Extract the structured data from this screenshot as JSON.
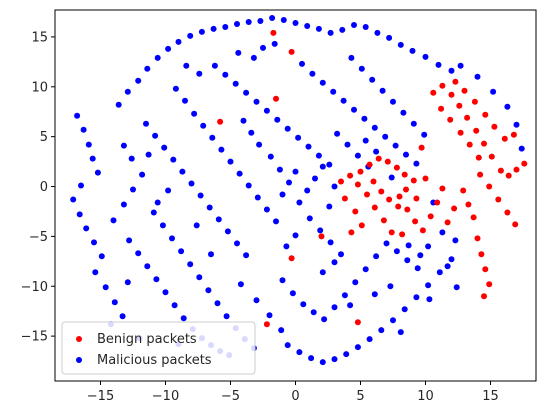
{
  "chart_data": {
    "type": "scatter",
    "title": "",
    "xlabel": "",
    "ylabel": "",
    "xlim": [
      -18.5,
      18.5
    ],
    "ylim": [
      -19.5,
      17.7
    ],
    "xticks": [
      -15,
      -10,
      -5,
      0,
      5,
      10,
      15
    ],
    "yticks": [
      -15,
      -10,
      -5,
      0,
      5,
      10,
      15
    ],
    "xtick_labels": [
      "−15",
      "−10",
      "−5",
      "0",
      "5",
      "10",
      "15"
    ],
    "ytick_labels": [
      "−15",
      "−10",
      "−5",
      "0",
      "5",
      "10",
      "15"
    ],
    "grid": false,
    "legend_position": "lower-left",
    "series": [
      {
        "name": "Benign packets",
        "color": "#ff0000",
        "points": [
          [
            3.5,
            0.5
          ],
          [
            4.2,
            1.1
          ],
          [
            4.8,
            0.2
          ],
          [
            5.5,
            -0.8
          ],
          [
            6.1,
            -2.1
          ],
          [
            6.8,
            -3.4
          ],
          [
            7.4,
            -4.6
          ],
          [
            5.0,
            1.5
          ],
          [
            5.7,
            2.2
          ],
          [
            6.4,
            2.8
          ],
          [
            7.1,
            2.5
          ],
          [
            7.8,
            1.9
          ],
          [
            8.4,
            1.2
          ],
          [
            9.1,
            0.6
          ],
          [
            8.0,
            -1.0
          ],
          [
            8.6,
            -2.3
          ],
          [
            9.2,
            -3.5
          ],
          [
            9.8,
            -4.4
          ],
          [
            10.4,
            -3.0
          ],
          [
            10.9,
            -1.6
          ],
          [
            11.3,
            -0.2
          ],
          [
            6.0,
            0.5
          ],
          [
            6.6,
            -0.5
          ],
          [
            7.2,
            -1.3
          ],
          [
            7.9,
            -2.0
          ],
          [
            8.5,
            -0.3
          ],
          [
            9.3,
            -1.2
          ],
          [
            10.0,
            0.8
          ],
          [
            10.6,
            9.4
          ],
          [
            11.3,
            10.1
          ],
          [
            12.0,
            9.2
          ],
          [
            12.6,
            8.1
          ],
          [
            13.2,
            6.9
          ],
          [
            13.9,
            5.6
          ],
          [
            14.5,
            4.3
          ],
          [
            15.1,
            3.0
          ],
          [
            15.8,
            1.6
          ],
          [
            16.4,
            1.1
          ],
          [
            17.0,
            1.7
          ],
          [
            17.6,
            2.3
          ],
          [
            11.2,
            7.8
          ],
          [
            11.9,
            6.7
          ],
          [
            12.7,
            5.4
          ],
          [
            13.4,
            4.2
          ],
          [
            14.1,
            2.9
          ],
          [
            12.3,
            10.5
          ],
          [
            13.0,
            9.6
          ],
          [
            13.8,
            8.5
          ],
          [
            14.6,
            7.2
          ],
          [
            15.3,
            6.0
          ],
          [
            16.1,
            4.8
          ],
          [
            16.8,
            5.2
          ],
          [
            14.2,
            1.2
          ],
          [
            14.9,
            0.0
          ],
          [
            15.6,
            -1.3
          ],
          [
            16.3,
            -2.6
          ],
          [
            16.9,
            -3.8
          ],
          [
            14.0,
            -5.2
          ],
          [
            14.3,
            -6.8
          ],
          [
            14.6,
            -8.3
          ],
          [
            14.9,
            -9.8
          ],
          [
            14.5,
            -11.0
          ],
          [
            12.9,
            -0.4
          ],
          [
            13.3,
            -1.8
          ],
          [
            13.7,
            -3.1
          ],
          [
            12.2,
            -2.2
          ],
          [
            11.7,
            -3.6
          ],
          [
            4.3,
            -4.6
          ],
          [
            5.1,
            -3.9
          ],
          [
            -0.3,
            13.5
          ],
          [
            -1.5,
            8.8
          ],
          [
            -5.8,
            6.5
          ],
          [
            -0.3,
            -7.2
          ],
          [
            -2.2,
            -13.8
          ],
          [
            4.8,
            -13.6
          ],
          [
            2.0,
            -5.0
          ],
          [
            -1.7,
            15.4
          ],
          [
            9.7,
            3.9
          ],
          [
            8.2,
            -4.8
          ],
          [
            3.8,
            -1.2
          ],
          [
            4.6,
            -2.5
          ]
        ]
      },
      {
        "name": "Malicious packets",
        "color": "#0000ff",
        "points": [
          [
            -16.8,
            7.1
          ],
          [
            -16.3,
            5.7
          ],
          [
            -15.9,
            4.2
          ],
          [
            -15.6,
            2.8
          ],
          [
            -15.2,
            1.4
          ],
          [
            -16.5,
            0.1
          ],
          [
            -17.1,
            -1.3
          ],
          [
            -16.6,
            -2.8
          ],
          [
            -16.1,
            -4.2
          ],
          [
            -15.5,
            -5.6
          ],
          [
            -14.9,
            -7.0
          ],
          [
            -15.4,
            -8.6
          ],
          [
            -14.6,
            -10.1
          ],
          [
            -13.9,
            -11.6
          ],
          [
            -13.3,
            -13.0
          ],
          [
            -14.0,
            -3.4
          ],
          [
            -13.2,
            -1.8
          ],
          [
            -12.5,
            -0.3
          ],
          [
            -11.8,
            1.2
          ],
          [
            -13.6,
            8.2
          ],
          [
            -12.9,
            9.5
          ],
          [
            -12.1,
            10.6
          ],
          [
            -11.4,
            11.8
          ],
          [
            -10.6,
            12.9
          ],
          [
            -9.8,
            13.8
          ],
          [
            -9.0,
            14.5
          ],
          [
            -8.1,
            15.1
          ],
          [
            -7.2,
            15.5
          ],
          [
            -6.3,
            15.8
          ],
          [
            -5.4,
            16.0
          ],
          [
            -4.5,
            16.3
          ],
          [
            -3.6,
            16.5
          ],
          [
            -2.7,
            16.6
          ],
          [
            -1.8,
            16.9
          ],
          [
            -0.9,
            16.7
          ],
          [
            0.0,
            16.4
          ],
          [
            0.9,
            16.1
          ],
          [
            1.8,
            15.8
          ],
          [
            2.7,
            15.4
          ],
          [
            3.6,
            15.7
          ],
          [
            4.5,
            16.2
          ],
          [
            5.4,
            16.0
          ],
          [
            6.3,
            15.4
          ],
          [
            7.2,
            14.9
          ],
          [
            8.1,
            14.2
          ],
          [
            9.0,
            13.6
          ],
          [
            10.0,
            13.0
          ],
          [
            11.0,
            12.2
          ],
          [
            12.0,
            11.6
          ],
          [
            -11.5,
            6.3
          ],
          [
            -10.8,
            5.1
          ],
          [
            -10.1,
            3.9
          ],
          [
            -9.4,
            2.7
          ],
          [
            -8.7,
            1.5
          ],
          [
            -8.0,
            0.3
          ],
          [
            -7.3,
            -0.9
          ],
          [
            -6.6,
            -2.1
          ],
          [
            -5.9,
            -3.3
          ],
          [
            -5.2,
            -4.5
          ],
          [
            -4.5,
            -5.7
          ],
          [
            -3.8,
            -6.9
          ],
          [
            -9.2,
            9.8
          ],
          [
            -8.5,
            8.6
          ],
          [
            -7.8,
            7.3
          ],
          [
            -7.1,
            6.1
          ],
          [
            -6.4,
            4.9
          ],
          [
            -5.7,
            3.7
          ],
          [
            -5.0,
            2.5
          ],
          [
            -4.3,
            1.3
          ],
          [
            -3.6,
            0.1
          ],
          [
            -2.9,
            -1.1
          ],
          [
            -2.2,
            -2.3
          ],
          [
            -1.5,
            -3.5
          ],
          [
            -6.2,
            12.1
          ],
          [
            -5.4,
            11.2
          ],
          [
            -4.6,
            10.3
          ],
          [
            -3.8,
            9.4
          ],
          [
            -3.0,
            8.5
          ],
          [
            -2.2,
            7.6
          ],
          [
            -1.4,
            6.7
          ],
          [
            -0.6,
            5.8
          ],
          [
            0.2,
            4.9
          ],
          [
            1.0,
            4.0
          ],
          [
            1.8,
            3.1
          ],
          [
            2.6,
            2.2
          ],
          [
            0.5,
            12.3
          ],
          [
            1.3,
            11.3
          ],
          [
            2.1,
            10.4
          ],
          [
            2.9,
            9.5
          ],
          [
            3.7,
            8.6
          ],
          [
            4.5,
            7.7
          ],
          [
            5.3,
            6.8
          ],
          [
            6.1,
            5.9
          ],
          [
            6.9,
            5.0
          ],
          [
            7.7,
            4.1
          ],
          [
            8.5,
            3.2
          ],
          [
            9.3,
            2.3
          ],
          [
            -12.8,
            -5.4
          ],
          [
            -12.1,
            -6.7
          ],
          [
            -11.4,
            -8.0
          ],
          [
            -10.7,
            -9.3
          ],
          [
            -10.0,
            -10.6
          ],
          [
            -9.3,
            -11.9
          ],
          [
            -8.6,
            -13.2
          ],
          [
            -7.9,
            -14.3
          ],
          [
            -7.2,
            -15.2
          ],
          [
            -6.5,
            -15.9
          ],
          [
            -5.8,
            -16.5
          ],
          [
            -5.1,
            -16.9
          ],
          [
            -10.9,
            -2.6
          ],
          [
            -10.2,
            -3.9
          ],
          [
            -9.5,
            -5.2
          ],
          [
            -8.8,
            -6.5
          ],
          [
            -8.1,
            -7.8
          ],
          [
            -7.4,
            -9.1
          ],
          [
            -6.7,
            -10.4
          ],
          [
            -6.0,
            -11.7
          ],
          [
            -5.3,
            -13.0
          ],
          [
            -4.6,
            -14.2
          ],
          [
            -3.9,
            -15.3
          ],
          [
            -3.2,
            -16.2
          ],
          [
            -0.6,
            -15.9
          ],
          [
            0.3,
            -16.6
          ],
          [
            1.2,
            -17.2
          ],
          [
            2.1,
            -17.6
          ],
          [
            3.0,
            -17.3
          ],
          [
            3.9,
            -16.8
          ],
          [
            4.8,
            -16.1
          ],
          [
            5.7,
            -15.3
          ],
          [
            6.6,
            -14.4
          ],
          [
            7.5,
            -13.4
          ],
          [
            8.4,
            -12.3
          ],
          [
            9.3,
            -11.1
          ],
          [
            10.2,
            -9.9
          ],
          [
            11.1,
            -8.6
          ],
          [
            12.0,
            -7.3
          ],
          [
            -1.0,
            -9.4
          ],
          [
            -0.2,
            -10.7
          ],
          [
            0.6,
            -11.8
          ],
          [
            1.4,
            -12.6
          ],
          [
            2.2,
            -13.3
          ],
          [
            3.0,
            -12.1
          ],
          [
            3.8,
            -10.9
          ],
          [
            4.6,
            -9.6
          ],
          [
            5.4,
            -8.3
          ],
          [
            6.2,
            -7.0
          ],
          [
            7.0,
            -5.7
          ],
          [
            7.8,
            -6.5
          ],
          [
            8.6,
            -7.4
          ],
          [
            9.4,
            -8.2
          ],
          [
            10.2,
            -6.0
          ],
          [
            0.3,
            -1.6
          ],
          [
            0.9,
            -0.4
          ],
          [
            1.5,
            0.8
          ],
          [
            2.1,
            2.0
          ],
          [
            0.0,
            1.5
          ],
          [
            -0.5,
            0.4
          ],
          [
            -1.0,
            -0.8
          ],
          [
            1.1,
            -3.2
          ],
          [
            1.9,
            -4.4
          ],
          [
            2.7,
            -5.6
          ],
          [
            3.5,
            -6.8
          ],
          [
            0.0,
            -4.9
          ],
          [
            -0.7,
            -6.0
          ],
          [
            -3.2,
            12.9
          ],
          [
            -2.5,
            13.9
          ],
          [
            -1.6,
            14.3
          ],
          [
            -4.4,
            13.4
          ],
          [
            -7.4,
            11.3
          ],
          [
            -8.4,
            12.1
          ],
          [
            -13.2,
            4.1
          ],
          [
            -12.6,
            2.8
          ],
          [
            -14.2,
            -13.8
          ],
          [
            -12.0,
            -15.2
          ],
          [
            -9.0,
            -15.8
          ],
          [
            4.3,
            12.9
          ],
          [
            5.1,
            11.8
          ],
          [
            5.9,
            10.7
          ],
          [
            6.7,
            9.6
          ],
          [
            7.5,
            8.5
          ],
          [
            8.3,
            7.4
          ],
          [
            9.1,
            6.3
          ],
          [
            9.9,
            5.2
          ],
          [
            3.2,
            5.3
          ],
          [
            4.0,
            4.2
          ],
          [
            4.8,
            3.1
          ],
          [
            5.6,
            2.0
          ],
          [
            3.0,
            0.0
          ],
          [
            2.6,
            -2.0
          ],
          [
            10.6,
            -1.6
          ],
          [
            11.3,
            -4.6
          ],
          [
            12.3,
            -5.4
          ],
          [
            11.7,
            -8.0
          ],
          [
            10.3,
            -11.3
          ],
          [
            8.1,
            -14.6
          ],
          [
            12.7,
            12.1
          ],
          [
            14.0,
            11.0
          ],
          [
            15.2,
            9.5
          ],
          [
            16.3,
            8.0
          ],
          [
            17.0,
            6.2
          ],
          [
            17.4,
            3.8
          ],
          [
            -2.8,
            4.2
          ],
          [
            -3.4,
            5.4
          ],
          [
            -4.0,
            6.6
          ],
          [
            -1.9,
            3.0
          ],
          [
            -1.2,
            1.7
          ],
          [
            -6.5,
            -6.8
          ],
          [
            -7.6,
            -3.9
          ],
          [
            -9.8,
            -0.4
          ],
          [
            -10.6,
            -1.6
          ],
          [
            -11.3,
            3.2
          ],
          [
            -12.9,
            -9.6
          ],
          [
            -4.2,
            -9.8
          ],
          [
            -3.0,
            -11.4
          ],
          [
            -2.0,
            -12.9
          ],
          [
            -1.1,
            -14.4
          ],
          [
            6.1,
            -10.8
          ],
          [
            7.3,
            -10.0
          ],
          [
            2.1,
            -8.6
          ],
          [
            3.0,
            -7.6
          ],
          [
            5.4,
            4.6
          ],
          [
            6.2,
            3.5
          ],
          [
            7.4,
            0.9
          ],
          [
            8.7,
            -5.9
          ],
          [
            9.6,
            -6.9
          ],
          [
            4.2,
            -11.9
          ],
          [
            12.4,
            -10.1
          ]
        ]
      }
    ]
  }
}
